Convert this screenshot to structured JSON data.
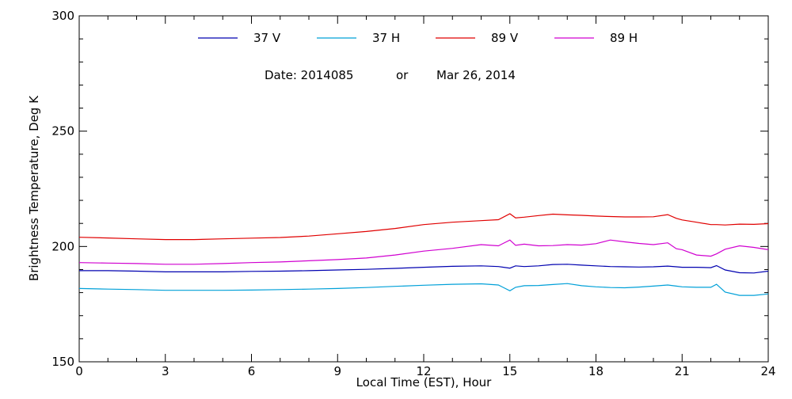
{
  "chart_data": {
    "type": "line",
    "xlabel": "Local Time (EST), Hour",
    "ylabel": "Brightness Temperature, Deg K",
    "xlim": [
      0,
      24
    ],
    "ylim": [
      150,
      300
    ],
    "xticks": [
      0,
      3,
      6,
      9,
      12,
      15,
      18,
      21,
      24
    ],
    "yticks": [
      150,
      200,
      250,
      300
    ],
    "grid": false,
    "legend_position": "top",
    "annotation": {
      "date_label": "Date: 2014085",
      "or_label": "or",
      "date_text": "Mar 26, 2014"
    },
    "x": [
      0,
      1,
      2,
      3,
      4,
      5,
      6,
      7,
      8,
      9,
      10,
      11,
      12,
      13,
      14,
      14.6,
      15,
      15.2,
      15.5,
      16,
      16.5,
      17,
      17.5,
      18,
      18.5,
      19,
      19.5,
      20,
      20.5,
      20.8,
      21,
      21.5,
      22,
      22.2,
      22.5,
      23,
      23.5,
      24
    ],
    "series": [
      {
        "name": "37 V",
        "color": "#0000b0",
        "values": [
          189.5,
          189.5,
          189.3,
          189.0,
          189.0,
          189.0,
          189.2,
          189.3,
          189.5,
          189.8,
          190.1,
          190.5,
          191.0,
          191.4,
          191.6,
          191.3,
          190.6,
          191.6,
          191.3,
          191.6,
          192.2,
          192.3,
          191.9,
          191.6,
          191.3,
          191.2,
          191.1,
          191.2,
          191.5,
          191.2,
          191.0,
          191.0,
          190.8,
          191.7,
          189.8,
          188.6,
          188.5,
          189.3
        ]
      },
      {
        "name": "37 H",
        "color": "#00a0d8",
        "values": [
          181.8,
          181.5,
          181.3,
          181.0,
          181.0,
          181.0,
          181.1,
          181.3,
          181.5,
          181.8,
          182.2,
          182.7,
          183.2,
          183.6,
          183.8,
          183.3,
          180.8,
          182.3,
          183.0,
          183.1,
          183.5,
          183.9,
          183.0,
          182.5,
          182.2,
          182.1,
          182.4,
          182.8,
          183.3,
          182.8,
          182.5,
          182.3,
          182.3,
          183.6,
          180.2,
          178.8,
          178.8,
          179.4
        ]
      },
      {
        "name": "89 V",
        "color": "#e00000",
        "values": [
          204.0,
          203.7,
          203.3,
          203.0,
          203.0,
          203.3,
          203.6,
          203.9,
          204.5,
          205.5,
          206.5,
          207.8,
          209.5,
          210.5,
          211.2,
          211.6,
          214.2,
          212.4,
          212.7,
          213.4,
          214.0,
          213.7,
          213.5,
          213.2,
          213.0,
          212.8,
          212.8,
          212.9,
          213.8,
          212.2,
          211.5,
          210.5,
          209.5,
          209.5,
          209.3,
          209.7,
          209.6,
          209.9
        ]
      },
      {
        "name": "89 H",
        "color": "#d000d0",
        "values": [
          193.0,
          192.8,
          192.6,
          192.3,
          192.3,
          192.6,
          193.0,
          193.3,
          193.8,
          194.3,
          195.0,
          196.3,
          198.0,
          199.2,
          200.8,
          200.3,
          202.8,
          200.5,
          201.0,
          200.3,
          200.4,
          200.8,
          200.6,
          201.2,
          202.8,
          202.0,
          201.3,
          200.8,
          201.6,
          199.0,
          198.6,
          196.3,
          195.8,
          196.8,
          198.8,
          200.3,
          199.6,
          198.6
        ]
      }
    ]
  }
}
